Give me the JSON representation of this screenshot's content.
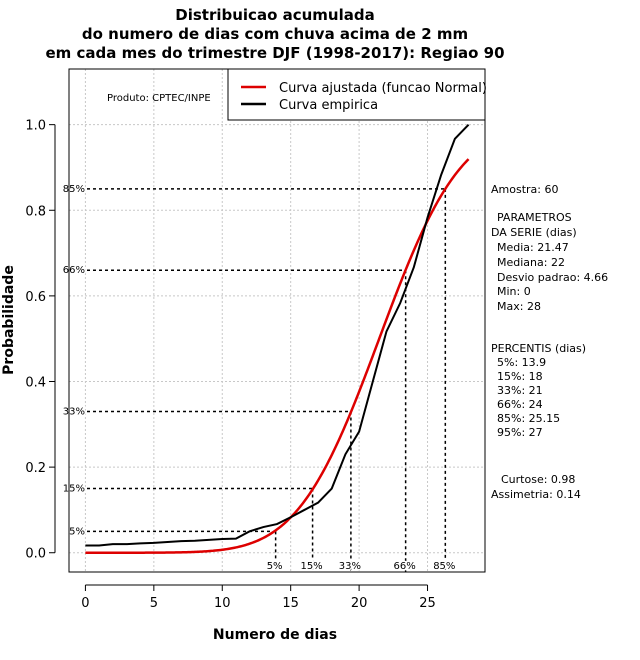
{
  "colors": {
    "fitted": "#dd0000",
    "empirical": "#000000",
    "grid": "#c8c8c8"
  },
  "chart_data": {
    "type": "line",
    "title": [
      "Distribuicao acumulada",
      "do numero de dias com chuva acima de 2 mm",
      "em cada mes do trimestre DJF (1998-2017): Regiao 90"
    ],
    "xlabel": "Numero de dias",
    "ylabel": "Probabilidade",
    "xlim": [
      -1.2,
      29.2
    ],
    "ylim": [
      -0.045,
      1.13
    ],
    "xticks": [
      0,
      5,
      10,
      15,
      20,
      25
    ],
    "yticks": [
      0.0,
      0.2,
      0.4,
      0.6,
      0.8,
      1.0
    ],
    "ytick_labels": [
      "0.0",
      "0.2",
      "0.4",
      "0.6",
      "0.8",
      "1.0"
    ],
    "grid": true,
    "product_label": "Produto: CPTEC/INPE",
    "legend_position": "top-right",
    "series": [
      {
        "name": "Curva ajustada (funcao Normal)",
        "kind": "normal_cdf",
        "mean": 21.47,
        "sd": 4.66,
        "x_range": [
          0,
          28
        ]
      },
      {
        "name": "Curva empirica",
        "x": [
          0,
          1,
          2,
          3,
          4,
          5,
          6,
          7,
          8,
          9,
          10,
          11,
          12,
          13,
          14,
          15,
          16,
          17,
          18,
          19,
          20,
          21,
          22,
          23,
          24,
          25,
          26,
          27,
          28
        ],
        "y": [
          0.017,
          0.017,
          0.02,
          0.02,
          0.022,
          0.023,
          0.025,
          0.027,
          0.028,
          0.03,
          0.032,
          0.033,
          0.05,
          0.06,
          0.067,
          0.083,
          0.1,
          0.117,
          0.15,
          0.23,
          0.283,
          0.4,
          0.517,
          0.583,
          0.667,
          0.783,
          0.883,
          0.967,
          1.0
        ]
      }
    ],
    "percentile_lines": [
      {
        "label": "5%",
        "p": 0.05,
        "x": 13.9
      },
      {
        "label": "15%",
        "p": 0.15,
        "x": 16.6
      },
      {
        "label": "33%",
        "p": 0.33,
        "x": 19.4
      },
      {
        "label": "66%",
        "p": 0.66,
        "x": 23.4
      },
      {
        "label": "85%",
        "p": 0.85,
        "x": 26.3
      }
    ]
  },
  "side_panel": {
    "sample": "Amostra: 60",
    "params_title": [
      "PARAMETROS",
      "DA SERIE (dias)"
    ],
    "params": [
      "Media: 21.47",
      "Mediana: 22",
      "Desvio padrao: 4.66",
      "Min: 0",
      "Max: 28"
    ],
    "percentis_title": "PERCENTIS (dias)",
    "percentis": [
      "5%: 13.9",
      "15%: 18",
      "33%: 21",
      "66%: 24",
      "85%: 25.15",
      "95%: 27"
    ],
    "curtose": "Curtose: 0.98",
    "assimetria": "Assimetria: 0.14"
  }
}
